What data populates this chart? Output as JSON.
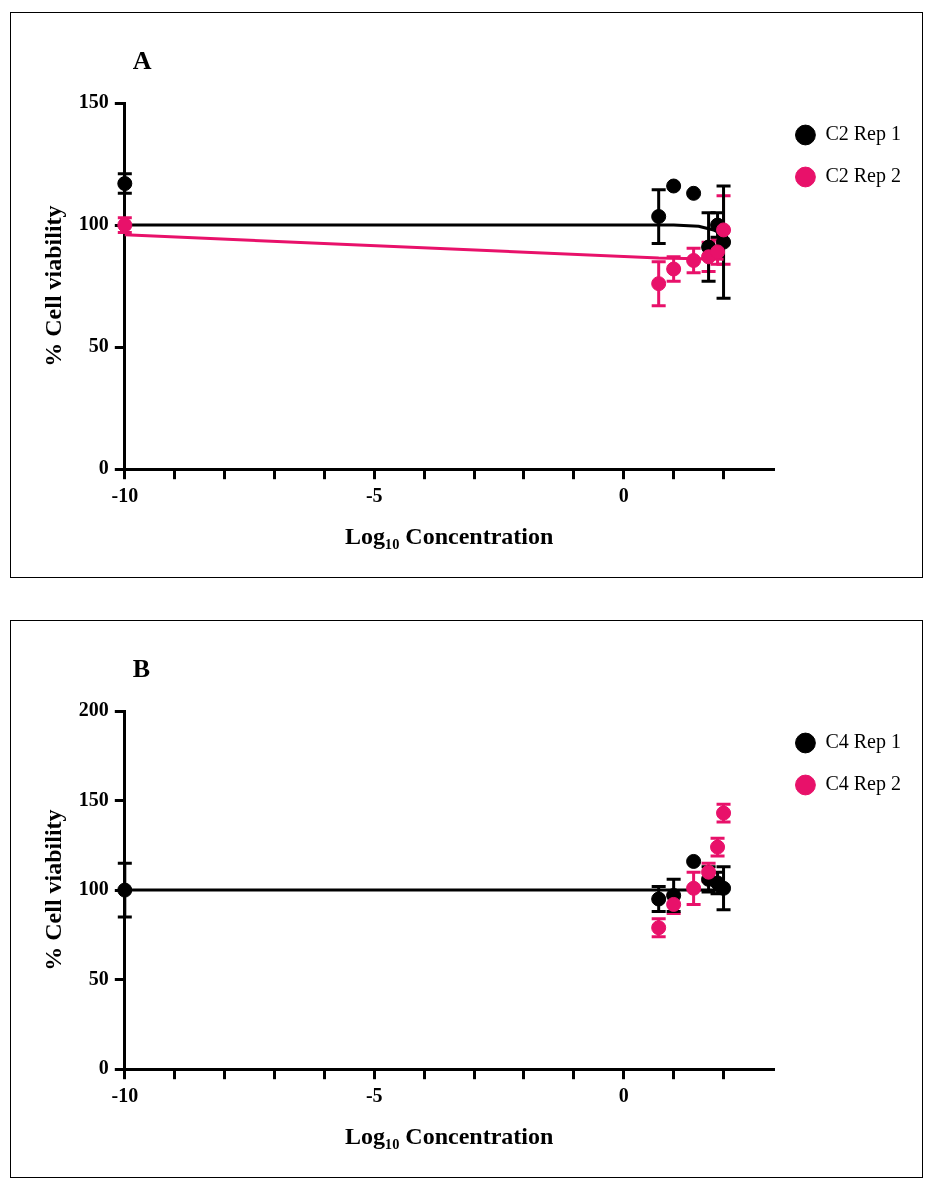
{
  "chart_data": [
    {
      "type": "scatter",
      "title": "A",
      "xlabel": "Log₁₀ Concentration",
      "ylabel": "% Cell viability",
      "xlim": [
        -10,
        3
      ],
      "ylim": [
        0,
        150
      ],
      "xticks": [
        -10,
        {
          "value": -9,
          "label": null
        },
        {
          "value": -8,
          "label": null
        },
        {
          "value": -7,
          "label": null
        },
        {
          "value": -6,
          "label": null
        },
        -5,
        {
          "value": -4,
          "label": null
        },
        {
          "value": -3,
          "label": null
        },
        {
          "value": -2,
          "label": null
        },
        {
          "value": -1,
          "label": null
        },
        0,
        {
          "value": 1,
          "label": null
        },
        {
          "value": 2,
          "label": null
        }
      ],
      "yticks": [
        0,
        50,
        100,
        150
      ],
      "legend": "right",
      "series": [
        {
          "type": "line",
          "color": "#000000",
          "marker": "none",
          "x": [
            -10,
            1,
            1.5,
            1.8,
            2
          ],
          "values": [
            100,
            100,
            99.5,
            98,
            96
          ]
        },
        {
          "type": "line",
          "color": "#e8116a",
          "marker": "none",
          "x": [
            -10,
            0.7,
            2
          ],
          "values": [
            96,
            86.5,
            86
          ]
        },
        {
          "type": "scatter",
          "name": "C2 Rep 1",
          "color": "#000000",
          "x": [
            -10,
            0.7,
            1,
            1.4,
            1.7,
            1.88,
            2
          ],
          "values": [
            117,
            103.5,
            116,
            113,
            91,
            100,
            93
          ],
          "errors": [
            4,
            11,
            null,
            null,
            14,
            5,
            23
          ]
        },
        {
          "type": "scatter",
          "name": "C2 Rep 2",
          "color": "#e8116a",
          "x": [
            -10,
            0.7,
            1,
            1.4,
            1.7,
            1.88,
            2
          ],
          "values": [
            100,
            76,
            82,
            85.5,
            87,
            89,
            98
          ],
          "errors": [
            3,
            9,
            5,
            5,
            6,
            5,
            14
          ]
        }
      ]
    },
    {
      "type": "scatter",
      "title": "B",
      "xlabel": "Log₁₀ Concentration",
      "ylabel": "% Cell viability",
      "xlim": [
        -10,
        3
      ],
      "ylim": [
        0,
        200
      ],
      "xticks": [
        -10,
        {
          "value": -9,
          "label": null
        },
        {
          "value": -8,
          "label": null
        },
        {
          "value": -7,
          "label": null
        },
        {
          "value": -6,
          "label": null
        },
        -5,
        {
          "value": -4,
          "label": null
        },
        {
          "value": -3,
          "label": null
        },
        {
          "value": -2,
          "label": null
        },
        {
          "value": -1,
          "label": null
        },
        0,
        {
          "value": 1,
          "label": null
        },
        {
          "value": 2,
          "label": null
        }
      ],
      "yticks": [
        0,
        50,
        100,
        150,
        200
      ],
      "legend": "right",
      "series": [
        {
          "type": "line",
          "color": "#000000",
          "marker": "none",
          "x": [
            -10,
            2
          ],
          "values": [
            100,
            100
          ]
        },
        {
          "type": "scatter",
          "name": "C4 Rep 1",
          "color": "#000000",
          "x": [
            -10,
            0.7,
            1,
            1.4,
            1.7,
            1.88,
            2
          ],
          "values": [
            100,
            95,
            97,
            116,
            106,
            104,
            101
          ],
          "errors": [
            15,
            7,
            9,
            null,
            7,
            6,
            12
          ]
        },
        {
          "type": "scatter",
          "name": "C4 Rep 2",
          "color": "#e8116a",
          "x": [
            0.7,
            1,
            1.4,
            1.7,
            1.88,
            2
          ],
          "values": [
            79,
            92,
            101,
            110,
            124,
            143
          ],
          "errors": [
            5,
            5,
            9,
            5,
            5,
            5
          ]
        }
      ]
    }
  ]
}
